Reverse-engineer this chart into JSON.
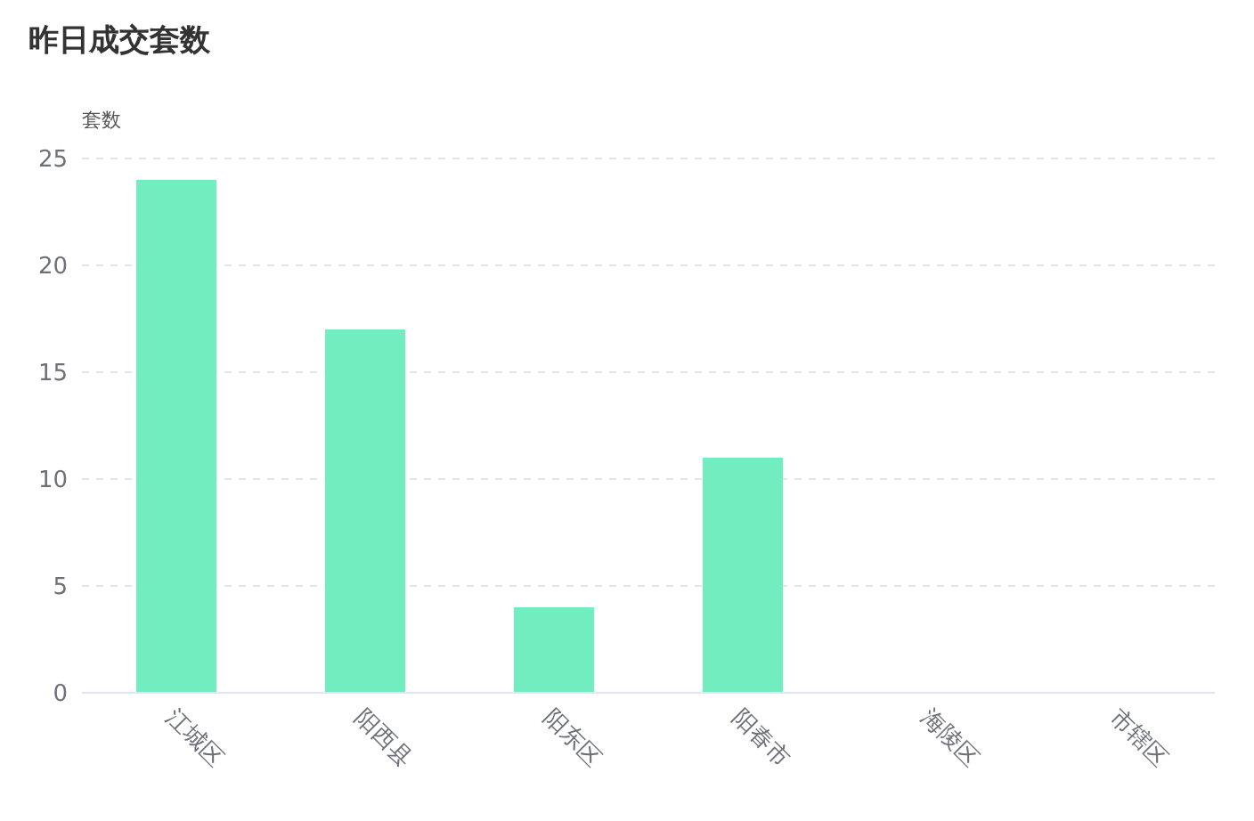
{
  "chart_data": {
    "type": "bar",
    "title": "昨日成交套数",
    "ylabel": "套数",
    "categories": [
      "江城区",
      "阳西县",
      "阳东区",
      "阳春市",
      "海陵区",
      "市辖区"
    ],
    "values": [
      24,
      17,
      4,
      11,
      0,
      0
    ],
    "color": "#72edbf",
    "ylim": [
      0,
      25
    ],
    "yticks": [
      0,
      5,
      10,
      15,
      20,
      25
    ],
    "grid": "y"
  }
}
